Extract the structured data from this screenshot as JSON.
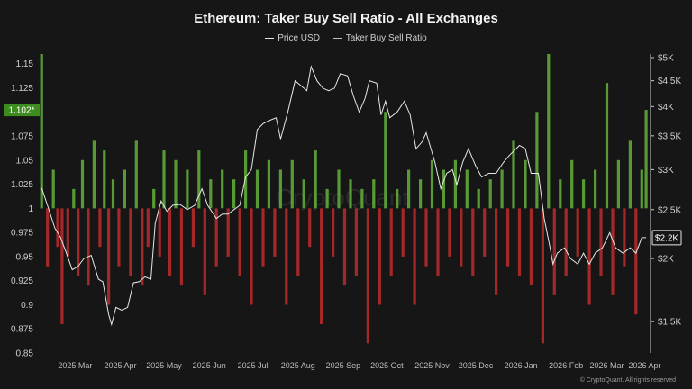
{
  "chart_data": {
    "type": "bar",
    "title": "Ethereum: Taker Buy Sell Ratio - All Exchanges",
    "legend": [
      "Price USD",
      "Taker Buy Sell Ratio"
    ],
    "legend_position": "top-center",
    "x_ticks": [
      "2025 Mar",
      "2025 Apr",
      "2025 May",
      "2025 Jun",
      "2025 Jul",
      "2025 Aug",
      "2025 Sep",
      "2025 Oct",
      "2025 Nov",
      "2025 Dec",
      "2026 Jan",
      "2026 Feb",
      "2026 Mar",
      "2026 Apr"
    ],
    "y_left": {
      "ticks": [
        "0.85",
        "0.875",
        "0.9",
        "0.925",
        "0.95",
        "0.975",
        "1",
        "1.025",
        "1.05",
        "1.075",
        "1.1",
        "1.125",
        "1.15"
      ],
      "range": [
        0.85,
        1.16
      ]
    },
    "y_right": {
      "ticks": [
        "$1.5K",
        "$2K",
        "$2.5K",
        "$3K",
        "$3.5K",
        "$4K",
        "$4.5K",
        "$5K"
      ],
      "scale": "log",
      "range": [
        1300,
        5000
      ]
    },
    "baseline": 1,
    "current_ratio_label": "1.102*",
    "current_price_label": "$2.2K",
    "colors": {
      "above": "#5fa83a",
      "below": "#b52a2a",
      "price_line": "#e8e8e8",
      "ratio_badge": "#3c8c1e"
    },
    "series": [
      {
        "name": "Price USD",
        "points": [
          [
            "2025-02-20",
            2760
          ],
          [
            "2025-02-24",
            2550
          ],
          [
            "2025-03-01",
            2300
          ],
          [
            "2025-03-05",
            2200
          ],
          [
            "2025-03-09",
            2050
          ],
          [
            "2025-03-13",
            1900
          ],
          [
            "2025-03-17",
            1930
          ],
          [
            "2025-03-21",
            2000
          ],
          [
            "2025-03-26",
            2030
          ],
          [
            "2025-03-31",
            1820
          ],
          [
            "2025-04-03",
            1800
          ],
          [
            "2025-04-07",
            1550
          ],
          [
            "2025-04-09",
            1480
          ],
          [
            "2025-04-12",
            1600
          ],
          [
            "2025-04-16",
            1580
          ],
          [
            "2025-04-20",
            1600
          ],
          [
            "2025-04-24",
            1790
          ],
          [
            "2025-04-28",
            1800
          ],
          [
            "2025-05-02",
            1840
          ],
          [
            "2025-05-06",
            1820
          ],
          [
            "2025-05-09",
            2350
          ],
          [
            "2025-05-13",
            2600
          ],
          [
            "2025-05-17",
            2480
          ],
          [
            "2025-05-21",
            2550
          ],
          [
            "2025-05-26",
            2560
          ],
          [
            "2025-05-31",
            2500
          ],
          [
            "2025-06-05",
            2550
          ],
          [
            "2025-06-10",
            2750
          ],
          [
            "2025-06-14",
            2550
          ],
          [
            "2025-06-20",
            2400
          ],
          [
            "2025-06-24",
            2450
          ],
          [
            "2025-06-28",
            2450
          ],
          [
            "2025-07-02",
            2500
          ],
          [
            "2025-07-06",
            2550
          ],
          [
            "2025-07-10",
            2900
          ],
          [
            "2025-07-14",
            3000
          ],
          [
            "2025-07-18",
            3600
          ],
          [
            "2025-07-22",
            3700
          ],
          [
            "2025-07-26",
            3750
          ],
          [
            "2025-07-31",
            3800
          ],
          [
            "2025-08-03",
            3450
          ],
          [
            "2025-08-08",
            3900
          ],
          [
            "2025-08-13",
            4500
          ],
          [
            "2025-08-17",
            4400
          ],
          [
            "2025-08-21",
            4300
          ],
          [
            "2025-08-24",
            4800
          ],
          [
            "2025-08-28",
            4500
          ],
          [
            "2025-09-01",
            4350
          ],
          [
            "2025-09-05",
            4300
          ],
          [
            "2025-09-09",
            4350
          ],
          [
            "2025-09-13",
            4650
          ],
          [
            "2025-09-18",
            4600
          ],
          [
            "2025-09-22",
            4200
          ],
          [
            "2025-09-26",
            3900
          ],
          [
            "2025-09-30",
            4150
          ],
          [
            "2025-10-03",
            4500
          ],
          [
            "2025-10-08",
            4450
          ],
          [
            "2025-10-11",
            3850
          ],
          [
            "2025-10-14",
            4100
          ],
          [
            "2025-10-17",
            3800
          ],
          [
            "2025-10-22",
            3900
          ],
          [
            "2025-10-27",
            4100
          ],
          [
            "2025-10-31",
            3850
          ],
          [
            "2025-11-04",
            3300
          ],
          [
            "2025-11-08",
            3400
          ],
          [
            "2025-11-11",
            3550
          ],
          [
            "2025-11-17",
            3100
          ],
          [
            "2025-11-21",
            2750
          ],
          [
            "2025-11-25",
            2950
          ],
          [
            "2025-11-29",
            3000
          ],
          [
            "2025-12-02",
            2800
          ],
          [
            "2025-12-06",
            3100
          ],
          [
            "2025-12-10",
            3300
          ],
          [
            "2025-12-15",
            3050
          ],
          [
            "2025-12-19",
            2900
          ],
          [
            "2025-12-24",
            2950
          ],
          [
            "2025-12-29",
            2950
          ],
          [
            "2026-01-03",
            3100
          ],
          [
            "2026-01-07",
            3200
          ],
          [
            "2026-01-14",
            3350
          ],
          [
            "2026-01-18",
            3300
          ],
          [
            "2026-01-22",
            2950
          ],
          [
            "2026-01-27",
            2950
          ],
          [
            "2026-01-31",
            2400
          ],
          [
            "2026-02-04",
            2100
          ],
          [
            "2026-02-06",
            1950
          ],
          [
            "2026-02-09",
            2050
          ],
          [
            "2026-02-14",
            2100
          ],
          [
            "2026-02-18",
            2000
          ],
          [
            "2026-02-23",
            1950
          ],
          [
            "2026-02-27",
            2050
          ],
          [
            "2026-03-03",
            1950
          ],
          [
            "2026-03-07",
            2050
          ],
          [
            "2026-03-12",
            2100
          ],
          [
            "2026-03-17",
            2250
          ],
          [
            "2026-03-21",
            2100
          ],
          [
            "2026-03-26",
            2050
          ],
          [
            "2026-03-31",
            2100
          ],
          [
            "2026-04-04",
            2050
          ],
          [
            "2026-04-08",
            2200
          ],
          [
            "2026-04-11",
            2200
          ]
        ]
      },
      {
        "name": "Taker Buy Sell Ratio",
        "bars": [
          [
            "2025-02-20",
            1.16
          ],
          [
            "2025-02-24",
            0.94
          ],
          [
            "2025-02-28",
            1.04
          ],
          [
            "2025-03-03",
            0.96
          ],
          [
            "2025-03-06",
            0.88
          ],
          [
            "2025-03-10",
            0.95
          ],
          [
            "2025-03-14",
            1.02
          ],
          [
            "2025-03-17",
            0.93
          ],
          [
            "2025-03-20",
            1.05
          ],
          [
            "2025-03-24",
            0.92
          ],
          [
            "2025-03-28",
            1.07
          ],
          [
            "2025-04-01",
            0.96
          ],
          [
            "2025-04-04",
            1.06
          ],
          [
            "2025-04-07",
            0.9
          ],
          [
            "2025-04-10",
            1.03
          ],
          [
            "2025-04-14",
            0.94
          ],
          [
            "2025-04-18",
            1.04
          ],
          [
            "2025-04-22",
            0.93
          ],
          [
            "2025-04-26",
            1.07
          ],
          [
            "2025-04-30",
            0.92
          ],
          [
            "2025-05-04",
            0.96
          ],
          [
            "2025-05-08",
            1.02
          ],
          [
            "2025-05-12",
            0.95
          ],
          [
            "2025-05-15",
            1.06
          ],
          [
            "2025-05-19",
            0.93
          ],
          [
            "2025-05-23",
            1.05
          ],
          [
            "2025-05-27",
            0.92
          ],
          [
            "2025-05-31",
            1.04
          ],
          [
            "2025-06-04",
            0.96
          ],
          [
            "2025-06-08",
            1.06
          ],
          [
            "2025-06-12",
            0.91
          ],
          [
            "2025-06-16",
            1.03
          ],
          [
            "2025-06-20",
            0.94
          ],
          [
            "2025-06-24",
            1.04
          ],
          [
            "2025-06-28",
            0.95
          ],
          [
            "2025-07-02",
            1.03
          ],
          [
            "2025-07-06",
            0.93
          ],
          [
            "2025-07-10",
            1.06
          ],
          [
            "2025-07-14",
            0.9
          ],
          [
            "2025-07-18",
            1.04
          ],
          [
            "2025-07-22",
            0.94
          ],
          [
            "2025-07-26",
            1.05
          ],
          [
            "2025-07-30",
            0.95
          ],
          [
            "2025-08-03",
            1.04
          ],
          [
            "2025-08-07",
            0.9
          ],
          [
            "2025-08-11",
            1.05
          ],
          [
            "2025-08-15",
            0.93
          ],
          [
            "2025-08-19",
            1.03
          ],
          [
            "2025-08-23",
            0.96
          ],
          [
            "2025-08-27",
            1.06
          ],
          [
            "2025-08-31",
            0.88
          ],
          [
            "2025-09-04",
            1.02
          ],
          [
            "2025-09-08",
            0.95
          ],
          [
            "2025-09-12",
            1.04
          ],
          [
            "2025-09-16",
            0.92
          ],
          [
            "2025-09-20",
            1.03
          ],
          [
            "2025-09-24",
            0.93
          ],
          [
            "2025-09-28",
            1.02
          ],
          [
            "2025-10-02",
            0.86
          ],
          [
            "2025-10-06",
            1.03
          ],
          [
            "2025-10-10",
            0.9
          ],
          [
            "2025-10-14",
            1.1
          ],
          [
            "2025-10-18",
            0.93
          ],
          [
            "2025-10-22",
            1.02
          ],
          [
            "2025-10-26",
            0.95
          ],
          [
            "2025-10-30",
            1.04
          ],
          [
            "2025-11-03",
            0.9
          ],
          [
            "2025-11-07",
            1.03
          ],
          [
            "2025-11-11",
            0.94
          ],
          [
            "2025-11-15",
            1.05
          ],
          [
            "2025-11-19",
            0.93
          ],
          [
            "2025-11-23",
            1.04
          ],
          [
            "2025-11-27",
            0.95
          ],
          [
            "2025-12-01",
            1.05
          ],
          [
            "2025-12-05",
            0.94
          ],
          [
            "2025-12-09",
            1.04
          ],
          [
            "2025-12-13",
            0.93
          ],
          [
            "2025-12-17",
            1.02
          ],
          [
            "2025-12-21",
            0.95
          ],
          [
            "2025-12-25",
            1.03
          ],
          [
            "2025-12-29",
            0.91
          ],
          [
            "2026-01-02",
            1.04
          ],
          [
            "2026-01-06",
            0.94
          ],
          [
            "2026-01-10",
            1.07
          ],
          [
            "2026-01-14",
            0.93
          ],
          [
            "2026-01-18",
            1.05
          ],
          [
            "2026-01-22",
            0.92
          ],
          [
            "2026-01-26",
            1.1
          ],
          [
            "2026-01-30",
            0.86
          ],
          [
            "2026-02-03",
            1.16
          ],
          [
            "2026-02-07",
            0.91
          ],
          [
            "2026-02-11",
            1.03
          ],
          [
            "2026-02-15",
            0.93
          ],
          [
            "2026-02-19",
            1.05
          ],
          [
            "2026-02-23",
            0.95
          ],
          [
            "2026-02-27",
            1.03
          ],
          [
            "2026-03-03",
            0.9
          ],
          [
            "2026-03-07",
            1.04
          ],
          [
            "2026-03-11",
            0.93
          ],
          [
            "2026-03-15",
            1.13
          ],
          [
            "2026-03-19",
            0.91
          ],
          [
            "2026-03-23",
            1.05
          ],
          [
            "2026-03-27",
            0.94
          ],
          [
            "2026-03-31",
            1.07
          ],
          [
            "2026-04-04",
            0.89
          ],
          [
            "2026-04-08",
            1.04
          ],
          [
            "2026-04-11",
            1.102
          ]
        ]
      }
    ]
  },
  "watermark": "CryptoQuant",
  "footer": "© CryptoQuant. All rights reserved"
}
